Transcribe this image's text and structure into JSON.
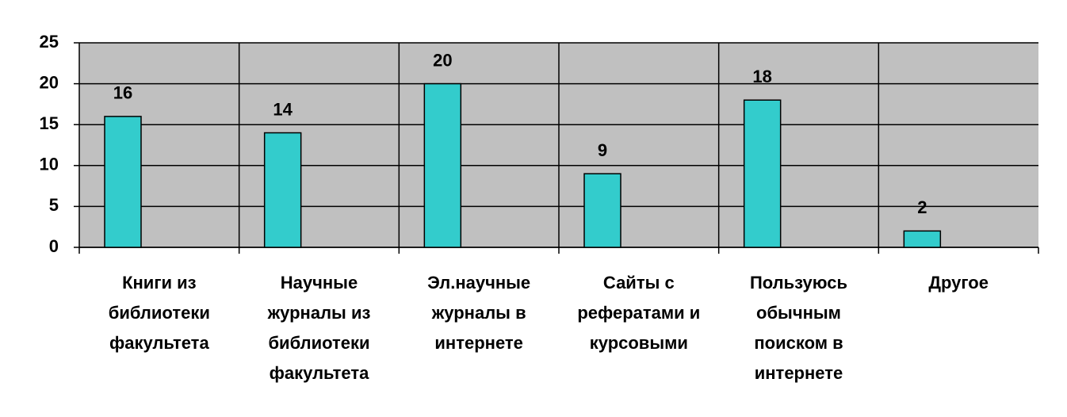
{
  "chart_data": {
    "type": "bar",
    "categories": [
      "Книги из библиотеки факультета",
      "Научные журналы из библиотеки факультета",
      "Эл.научные журналы в интернете",
      "Сайты с рефератами и курсовыми",
      "Пользуюсь обычным поиском в интернете",
      "Другое"
    ],
    "values": [
      16,
      14,
      20,
      9,
      18,
      2
    ],
    "color": "#33cccc",
    "ylim": [
      0,
      25
    ],
    "yticks": [
      0,
      5,
      10,
      15,
      20,
      25
    ],
    "grid": true
  }
}
